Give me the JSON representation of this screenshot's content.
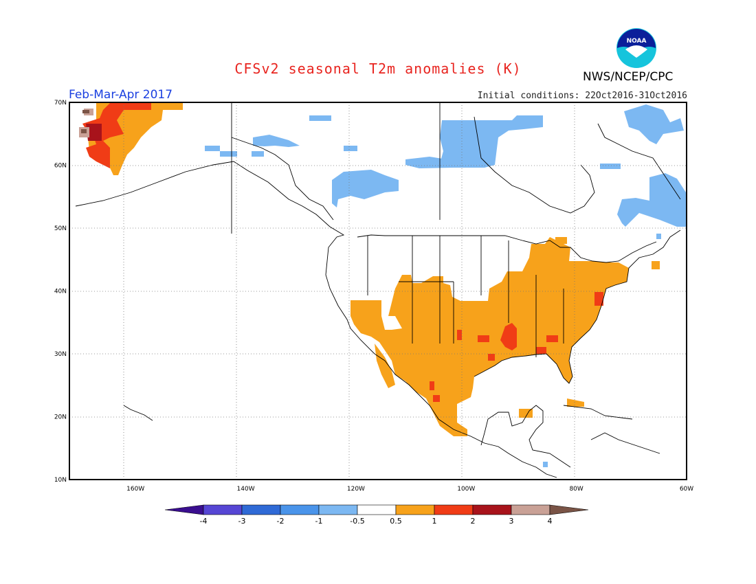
{
  "title": "CFSv2 seasonal T2m anomalies (K)",
  "season": "Feb-Mar-Apr 2017",
  "initial_conditions": "Initial conditions: 22Oct2016-31Oct2016",
  "organization": "NWS/NCEP/CPC",
  "logo_text": "NOAA",
  "map": {
    "lon_range": [
      -172,
      -60
    ],
    "lat_range": [
      10,
      70
    ],
    "lon_ticks": [
      {
        "value": -160,
        "label": "160W"
      },
      {
        "value": -140,
        "label": "140W"
      },
      {
        "value": -120,
        "label": "120W"
      },
      {
        "value": -100,
        "label": "100W"
      },
      {
        "value": -80,
        "label": "80W"
      },
      {
        "value": -60,
        "label": "60W"
      }
    ],
    "lat_ticks": [
      {
        "value": 10,
        "label": "10N"
      },
      {
        "value": 20,
        "label": "20N"
      },
      {
        "value": 30,
        "label": "30N"
      },
      {
        "value": 40,
        "label": "40N"
      },
      {
        "value": 50,
        "label": "50N"
      },
      {
        "value": 60,
        "label": "60N"
      },
      {
        "value": 70,
        "label": "70N"
      }
    ],
    "anomaly_regions": [
      {
        "name": "alaska-west-warm",
        "class": "0.5 to 1",
        "color": "#f7a21b"
      },
      {
        "name": "alaska-west-strong",
        "class": "1 to 2",
        "color": "#f03c16"
      },
      {
        "name": "alaska-west-very-strong",
        "class": "2 to 3",
        "color": "#a8131b"
      },
      {
        "name": "alaska-west-extreme",
        "class": "3 to 4",
        "color": "#c9a196"
      },
      {
        "name": "conus-mexico-warm",
        "class": "0.5 to 1",
        "color": "#f7a21b"
      },
      {
        "name": "gulf-coast-strong",
        "class": "1 to 2",
        "color": "#f03c16"
      },
      {
        "name": "canada-cool",
        "class": "-1 to -0.5",
        "color": "#7cb8f2"
      }
    ]
  },
  "colorbar": {
    "bins": [
      {
        "color": "#3a0e8f"
      },
      {
        "color": "#5646d4"
      },
      {
        "color": "#2f6ad6"
      },
      {
        "color": "#4a94ea"
      },
      {
        "color": "#7cb8f2"
      },
      {
        "color": "#ffffff"
      },
      {
        "color": "#f7a21b"
      },
      {
        "color": "#f03c16"
      },
      {
        "color": "#a8131b"
      },
      {
        "color": "#c9a196"
      },
      {
        "color": "#7a5446"
      }
    ],
    "labels": [
      "-4",
      "-3",
      "-2",
      "-1",
      "-0.5",
      "0.5",
      "1",
      "2",
      "3",
      "4"
    ]
  }
}
